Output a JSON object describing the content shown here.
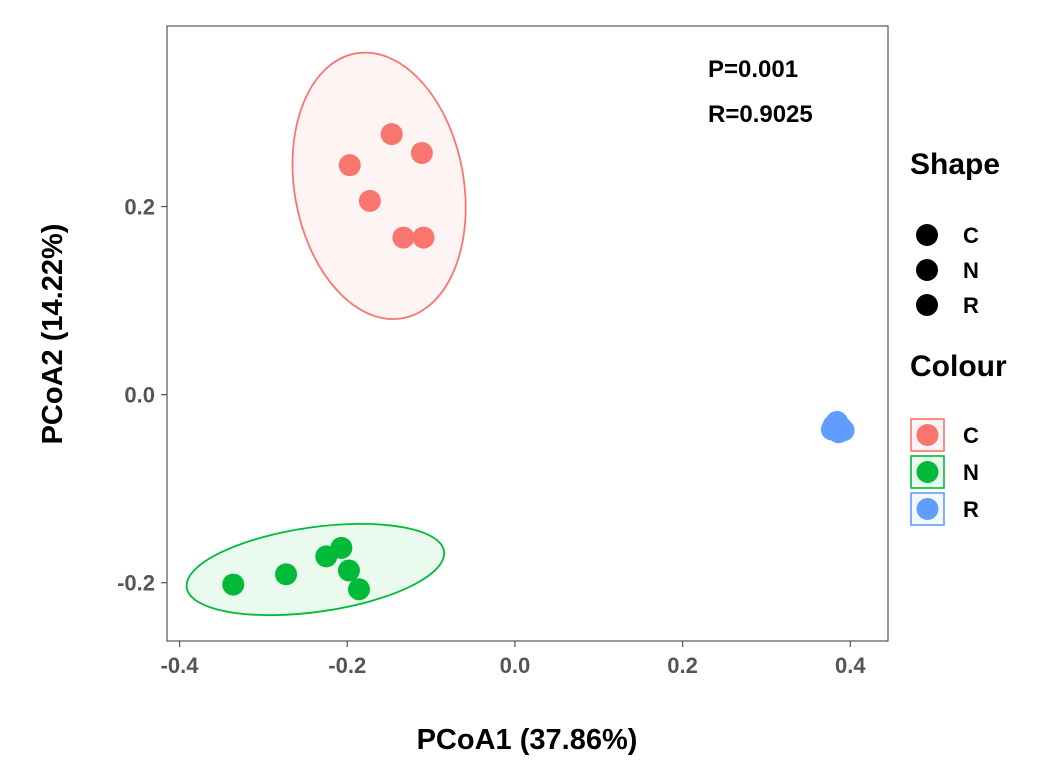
{
  "chart_data": {
    "type": "scatter",
    "xlabel": "PCoA1 (37.86%)",
    "ylabel": "PCoA2 (14.22%)",
    "xlim": [
      -0.415,
      0.445
    ],
    "ylim": [
      -0.262,
      0.392
    ],
    "x_ticks": [
      -0.4,
      -0.2,
      0.0,
      0.2,
      0.4
    ],
    "x_tick_labels": [
      "-0.4",
      "-0.2",
      "0.0",
      "0.2",
      "0.4"
    ],
    "y_ticks": [
      -0.2,
      0.0,
      0.2
    ],
    "y_tick_labels": [
      "-0.2",
      "0.0",
      "0.2"
    ],
    "grid": false,
    "annotations": [
      "P=0.001",
      "R=0.9025"
    ],
    "series": [
      {
        "name": "C",
        "color": "#F8766D",
        "x": [
          -0.147,
          -0.111,
          -0.197,
          -0.173,
          -0.133,
          -0.109
        ],
        "y": [
          0.277,
          0.257,
          0.244,
          0.206,
          0.167,
          0.167
        ],
        "ellipse": {
          "cx": -0.162,
          "cy": 0.222,
          "rx": 0.101,
          "ry": 0.143,
          "angle_deg": -10
        }
      },
      {
        "name": "N",
        "color": "#00BA38",
        "x": [
          -0.336,
          -0.273,
          -0.225,
          -0.207,
          -0.198,
          -0.186
        ],
        "y": [
          -0.202,
          -0.191,
          -0.172,
          -0.163,
          -0.187,
          -0.207
        ],
        "ellipse": {
          "cx": -0.238,
          "cy": -0.186,
          "rx": 0.155,
          "ry": 0.045,
          "angle_deg": -8
        }
      },
      {
        "name": "R",
        "color": "#619CFF",
        "x": [
          0.38,
          0.384,
          0.389,
          0.378,
          0.386,
          0.392,
          0.383
        ],
        "y": [
          -0.033,
          -0.029,
          -0.035,
          -0.037,
          -0.04,
          -0.038,
          -0.036
        ]
      }
    ],
    "legend": {
      "placement": "right",
      "shape_title": "Shape",
      "shape_items": [
        "C",
        "N",
        "R"
      ],
      "colour_title": "Colour",
      "colour_items": [
        "C",
        "N",
        "R"
      ]
    }
  }
}
